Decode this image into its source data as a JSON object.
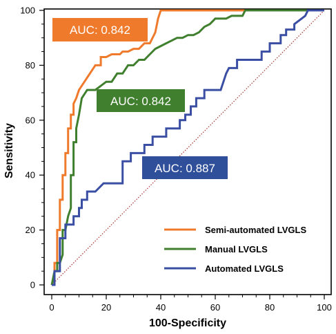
{
  "chart_data": {
    "type": "line",
    "xlabel": "100-Specificity",
    "ylabel": "Sensitivity",
    "xlim": [
      0,
      100
    ],
    "ylim": [
      0,
      100
    ],
    "x_ticks": [
      "0",
      "20",
      "40",
      "60",
      "80",
      "100"
    ],
    "y_ticks": [
      "0",
      "20",
      "40",
      "60",
      "80",
      "100"
    ],
    "grid": false,
    "legend_position": "bottom-right",
    "reference_line": {
      "from": [
        0,
        0
      ],
      "to": [
        100,
        100
      ],
      "color": "#a6322e",
      "style": "dotted"
    },
    "series": [
      {
        "name": "Semi-automated LVGLS",
        "color": "#f07a2b",
        "auc_label": "AUC: 0.842",
        "x": [
          0,
          1,
          1,
          2,
          2,
          3,
          3,
          4,
          4,
          5,
          5,
          6,
          6,
          7,
          7,
          8,
          8,
          9,
          10,
          10,
          12,
          12,
          14,
          14,
          16,
          16,
          18,
          18,
          20,
          20,
          22,
          25,
          26,
          28,
          30,
          32,
          34,
          36,
          38,
          39,
          40,
          42,
          46,
          55,
          70,
          100
        ],
        "y": [
          0,
          3,
          8,
          8,
          20,
          20,
          31,
          31,
          40,
          40,
          48,
          48,
          57,
          57,
          62,
          62,
          66,
          68,
          71,
          71,
          74,
          74,
          77,
          77,
          80,
          80,
          80,
          83,
          83,
          83,
          84,
          84,
          85,
          85,
          86,
          86,
          88,
          88,
          92,
          97,
          100,
          100,
          100,
          100,
          100,
          100
        ]
      },
      {
        "name": "Manual LVGLS",
        "color": "#3f7f2e",
        "auc_label": "AUC: 0.842",
        "x": [
          0,
          1,
          2,
          2,
          3,
          4,
          4,
          5,
          6,
          7,
          7,
          8,
          8,
          9,
          9,
          10,
          11,
          13,
          16,
          20,
          22,
          24,
          26,
          28,
          30,
          32,
          34,
          36,
          38,
          40,
          42,
          44,
          46,
          48,
          50,
          52,
          54,
          56,
          58,
          60,
          62,
          64,
          66,
          70,
          71,
          72,
          100
        ],
        "y": [
          0,
          5,
          5,
          8,
          8,
          11,
          20,
          20,
          25,
          28,
          40,
          40,
          52,
          52,
          57,
          62,
          68,
          71,
          71,
          74,
          74,
          77,
          77,
          80,
          80,
          82,
          82,
          84,
          86,
          87,
          88,
          89,
          90,
          90,
          91,
          91,
          92,
          94,
          95,
          97,
          97,
          97,
          98,
          98,
          100,
          100,
          100
        ]
      },
      {
        "name": "Automated LVGLS",
        "color": "#3a4fa3",
        "auc_label": "AUC: 0.887",
        "x": [
          0,
          1,
          1,
          3,
          3,
          5,
          5,
          8,
          8,
          10,
          10,
          11,
          11,
          13,
          13,
          16,
          16,
          19,
          19,
          22,
          22,
          26,
          26,
          27,
          27,
          29,
          29,
          34,
          34,
          37,
          37,
          42,
          42,
          47,
          47,
          49,
          49,
          51,
          51,
          53,
          53,
          56,
          56,
          58,
          60,
          62,
          64,
          64,
          65,
          68,
          68,
          77,
          77,
          80,
          80,
          84,
          84,
          86,
          86,
          89,
          89,
          93,
          94,
          100
        ],
        "y": [
          0,
          0,
          5,
          5,
          17,
          17,
          22,
          22,
          25,
          25,
          28,
          28,
          31,
          31,
          34,
          34,
          34,
          37,
          37,
          37,
          37,
          37,
          45,
          45,
          45,
          45,
          48,
          48,
          51,
          51,
          54,
          54,
          57,
          57,
          60,
          60,
          62,
          62,
          65,
          65,
          68,
          68,
          71,
          71,
          71,
          71,
          77,
          77,
          79,
          79,
          82,
          82,
          85,
          85,
          88,
          88,
          91,
          91,
          93,
          93,
          95,
          98,
          100,
          100
        ]
      }
    ]
  }
}
